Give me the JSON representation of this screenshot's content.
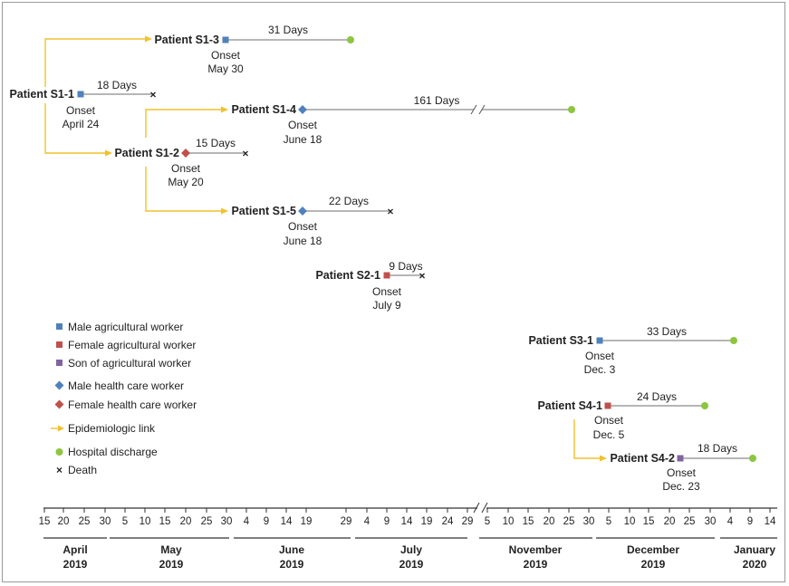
{
  "colors": {
    "male_agri": "#4f81bd",
    "female_agri": "#c0504d",
    "son_agri": "#8064a2",
    "male_hcw": "#4f81bd",
    "female_hcw": "#c0504d",
    "link": "#f2c12e",
    "discharge": "#8cc63f",
    "death": "#222222",
    "course_line": "#9d9d9d"
  },
  "patients": [
    {
      "id": "p-s1-1",
      "name": "Patient S1-1",
      "onset_label": "Onset",
      "onset_date": "April 24",
      "duration": "18 Days",
      "marker": "male-agricultural-worker-square",
      "outcome": "death"
    },
    {
      "id": "p-s1-3",
      "name": "Patient S1-3",
      "onset_label": "Onset",
      "onset_date": "May 30",
      "duration": "31 Days",
      "marker": "male-agricultural-worker-square",
      "outcome": "discharge"
    },
    {
      "id": "p-s1-4",
      "name": "Patient S1-4",
      "onset_label": "Onset",
      "onset_date": "June 18",
      "duration": "161 Days",
      "marker": "male-health-care-worker-diamond",
      "outcome": "discharge"
    },
    {
      "id": "p-s1-2",
      "name": "Patient S1-2",
      "onset_label": "Onset",
      "onset_date": "May 20",
      "duration": "15 Days",
      "marker": "female-health-care-worker-diamond",
      "outcome": "death"
    },
    {
      "id": "p-s1-5",
      "name": "Patient S1-5",
      "onset_label": "Onset",
      "onset_date": "June 18",
      "duration": "22 Days",
      "marker": "male-health-care-worker-diamond",
      "outcome": "death"
    },
    {
      "id": "p-s2-1",
      "name": "Patient S2-1",
      "onset_label": "Onset",
      "onset_date": "July 9",
      "duration": "9 Days",
      "marker": "female-agricultural-worker-square",
      "outcome": "death"
    },
    {
      "id": "p-s3-1",
      "name": "Patient S3-1",
      "onset_label": "Onset",
      "onset_date": "Dec. 3",
      "duration": "33 Days",
      "marker": "male-agricultural-worker-square",
      "outcome": "discharge"
    },
    {
      "id": "p-s4-1",
      "name": "Patient S4-1",
      "onset_label": "Onset",
      "onset_date": "Dec. 5",
      "duration": "24 Days",
      "marker": "female-agricultural-worker-square",
      "outcome": "discharge"
    },
    {
      "id": "p-s4-2",
      "name": "Patient S4-2",
      "onset_label": "Onset",
      "onset_date": "Dec. 23",
      "duration": "18 Days",
      "marker": "son-of-agricultural-worker-square",
      "outcome": "discharge"
    }
  ],
  "legend": [
    {
      "id": "male-agri",
      "label": "Male agricultural worker",
      "icon": "blue-square-icon"
    },
    {
      "id": "female-agri",
      "label": "Female agricultural worker",
      "icon": "red-square-icon"
    },
    {
      "id": "son-agri",
      "label": "Son of agricultural worker",
      "icon": "purple-square-icon"
    },
    {
      "id": "male-hcw",
      "label": "Male health care worker",
      "icon": "blue-diamond-icon"
    },
    {
      "id": "female-hcw",
      "label": "Female health care worker",
      "icon": "red-diamond-icon"
    },
    {
      "id": "link",
      "label": "Epidemiologic link",
      "icon": "yellow-arrow-icon"
    },
    {
      "id": "discharge",
      "label": "Hospital discharge",
      "icon": "green-circle-icon"
    },
    {
      "id": "death",
      "label": "Death",
      "icon": "x-icon"
    }
  ],
  "axis": {
    "ticks": [
      "15",
      "20",
      "25",
      "30",
      "5",
      "10",
      "15",
      "20",
      "25",
      "30",
      "4",
      "9",
      "14",
      "19",
      "29",
      "4",
      "9",
      "14",
      "19",
      "24",
      "29",
      "5",
      "10",
      "15",
      "20",
      "25",
      "30",
      "5",
      "10",
      "15",
      "20",
      "25",
      "30",
      "4",
      "9",
      "14"
    ],
    "months": [
      {
        "name": "April",
        "year": "2019"
      },
      {
        "name": "May",
        "year": "2019"
      },
      {
        "name": "June",
        "year": "2019"
      },
      {
        "name": "July",
        "year": "2019"
      },
      {
        "name": "November",
        "year": "2019"
      },
      {
        "name": "December",
        "year": "2019"
      },
      {
        "name": "January",
        "year": "2020"
      }
    ]
  }
}
